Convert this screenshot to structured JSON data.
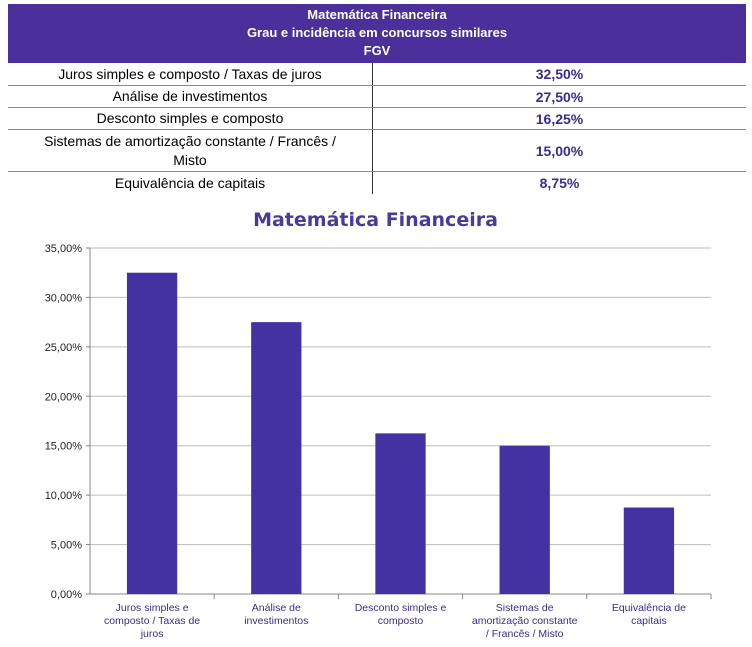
{
  "table": {
    "header": {
      "line1": "Matemática Financeira",
      "line2": "Grau e incidência em concursos similares",
      "line3": "FGV"
    },
    "rows": [
      {
        "topic": "Juros simples e composto / Taxas de juros",
        "value": "32,50%"
      },
      {
        "topic": "Análise de investimentos",
        "value": "27,50%"
      },
      {
        "topic": "Desconto simples e composto",
        "value": "16,25%"
      },
      {
        "topic_line1": "Sistemas de amortização constante / Francês /",
        "topic_line2": "Misto",
        "value": "15,00%"
      },
      {
        "topic": "Equivalência de capitais",
        "value": "8,75%"
      }
    ]
  },
  "chart_data": {
    "type": "bar",
    "title": "Matemática Financeira",
    "categories": [
      [
        "Juros simples e",
        "composto / Taxas de",
        "juros"
      ],
      [
        "Análise de",
        "investimentos"
      ],
      [
        "Desconto simples e",
        "composto"
      ],
      [
        "Sistemas de",
        "amortização constante",
        "/ Francês / Misto"
      ],
      [
        "Equivalência de",
        "capitais"
      ]
    ],
    "values": [
      32.5,
      27.5,
      16.25,
      15.0,
      8.75
    ],
    "ylim": [
      0,
      35
    ],
    "yticks": [
      "0,00%",
      "5,00%",
      "10,00%",
      "15,00%",
      "20,00%",
      "25,00%",
      "30,00%",
      "35,00%"
    ],
    "grid": true,
    "bar_color": "#4432a2",
    "grid_color": "#bdbdbd"
  }
}
